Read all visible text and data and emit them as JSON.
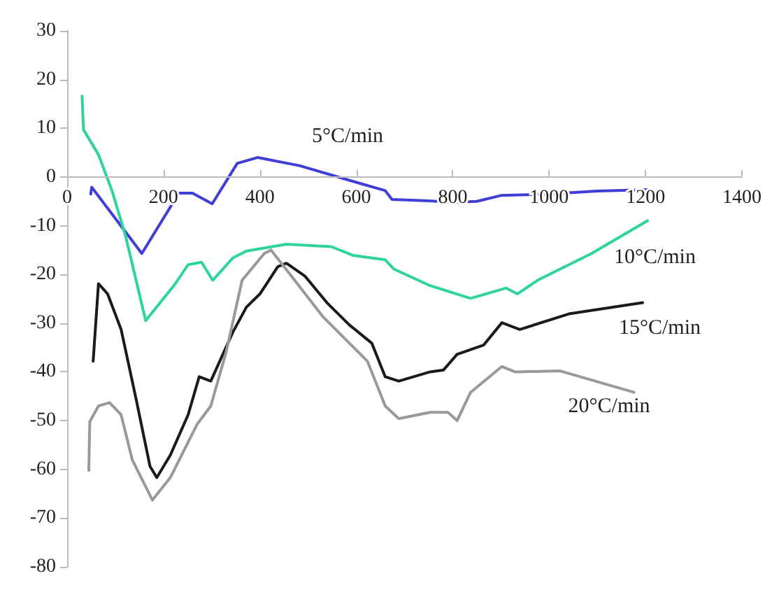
{
  "chart_data": {
    "type": "line",
    "xlim": [
      0,
      1400
    ],
    "xticks": [
      0,
      200,
      400,
      600,
      800,
      1000,
      1200,
      1400
    ],
    "ylim": [
      -80,
      30
    ],
    "yticks": [
      -80,
      -70,
      -60,
      -50,
      -40,
      -30,
      -20,
      -10,
      0,
      10,
      20,
      30
    ],
    "grid": false,
    "legend": false,
    "marker": "none",
    "line_style": "solid",
    "series": [
      {
        "name": "5°C/min",
        "color": "#3f3fd8",
        "x": [
          49,
          51,
          155,
          232,
          260,
          301,
          353,
          395,
          483,
          586,
          660,
          674,
          750,
          800,
          850,
          900,
          1000,
          1100,
          1210
        ],
        "values": [
          -3.5,
          -2.1,
          -15.7,
          -3.3,
          -3.3,
          -5.5,
          2.8,
          4.0,
          2.3,
          -0.7,
          -2.8,
          -4.6,
          -4.9,
          -5.2,
          -5.0,
          -3.8,
          -3.5,
          -2.9,
          -2.6
        ]
      },
      {
        "name": "10°C/min",
        "color": "#2ed3a0",
        "x": [
          31,
          34,
          65,
          93,
          121,
          163,
          223,
          251,
          279,
          302,
          344,
          372,
          455,
          548,
          594,
          660,
          678,
          753,
          837,
          911,
          934,
          976,
          1088,
          1204
        ],
        "values": [
          16.6,
          9.7,
          4.6,
          -2.8,
          -12,
          -29.5,
          -22.1,
          -18,
          -17.5,
          -21.2,
          -16.6,
          -15.2,
          -13.8,
          -14.3,
          -16.1,
          -17,
          -18.9,
          -22.3,
          -24.9,
          -22.8,
          -24,
          -21.2,
          -15.7,
          -9
        ]
      },
      {
        "name": "15°C/min",
        "color": "#1a1a1a",
        "x": [
          54,
          65,
          84,
          112,
          144,
          172,
          186,
          214,
          251,
          274,
          298,
          344,
          372,
          400,
          437,
          455,
          493,
          539,
          586,
          632,
          660,
          688,
          753,
          781,
          809,
          864,
          902,
          939,
          1041,
          1194
        ],
        "values": [
          -37.8,
          -21.9,
          -24,
          -31.3,
          -46,
          -59.4,
          -61.7,
          -57.1,
          -48.8,
          -41,
          -41.9,
          -31.8,
          -26.7,
          -24,
          -18.4,
          -17.7,
          -20.3,
          -25.8,
          -30.4,
          -34.1,
          -41,
          -41.9,
          -40,
          -39.6,
          -36.4,
          -34.5,
          -29.9,
          -31.3,
          -28.1,
          -25.8
        ]
      },
      {
        "name": "20°C/min",
        "color": "#999999",
        "x": [
          45,
          47,
          65,
          88,
          112,
          135,
          177,
          214,
          270,
          298,
          330,
          363,
          409,
          423,
          465,
          530,
          623,
          660,
          688,
          753,
          790,
          809,
          837,
          902,
          929,
          1023,
          1176
        ],
        "values": [
          -60.2,
          -50.2,
          -47,
          -46.3,
          -48.8,
          -58,
          -66.3,
          -61.7,
          -50.7,
          -47,
          -35.9,
          -21.2,
          -15.7,
          -15,
          -20.3,
          -28.6,
          -37.8,
          -47,
          -49.6,
          -48.3,
          -48.3,
          -50,
          -44.2,
          -38.9,
          -40,
          -39.8,
          -44.2
        ]
      }
    ]
  }
}
